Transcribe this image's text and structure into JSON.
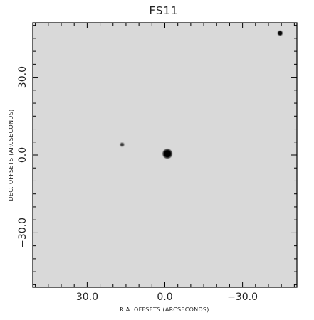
{
  "title": "FS11",
  "image_background": "#d9d9d9",
  "frame_color": "#000000",
  "axes": {
    "x_label": "R.A. OFFSETS (ARCSECONDS)",
    "y_label": "DEC. OFFSETS (ARCSECONDS)",
    "x_ticks": [
      {
        "value": 30,
        "label": "30.0"
      },
      {
        "value": 0,
        "label": "0.0"
      },
      {
        "value": -30,
        "label": "−30.0"
      }
    ],
    "y_ticks": [
      {
        "value": 30,
        "label": "30.0"
      },
      {
        "value": 0,
        "label": "0.0"
      },
      {
        "value": -30,
        "label": "−30.0"
      }
    ],
    "x_range": [
      51,
      -51
    ],
    "y_range": [
      -51,
      51
    ],
    "x_minor_step": 5,
    "y_minor_step": 5
  },
  "sources": [
    {
      "name": "target-star",
      "ra": -1.0,
      "dec": 0.5,
      "size": "large"
    },
    {
      "name": "field-star-left",
      "ra": 16.5,
      "dec": 4.0,
      "size": "small"
    },
    {
      "name": "field-star-top-right",
      "ra": -44.5,
      "dec": 47.0,
      "size": "medium"
    }
  ]
}
